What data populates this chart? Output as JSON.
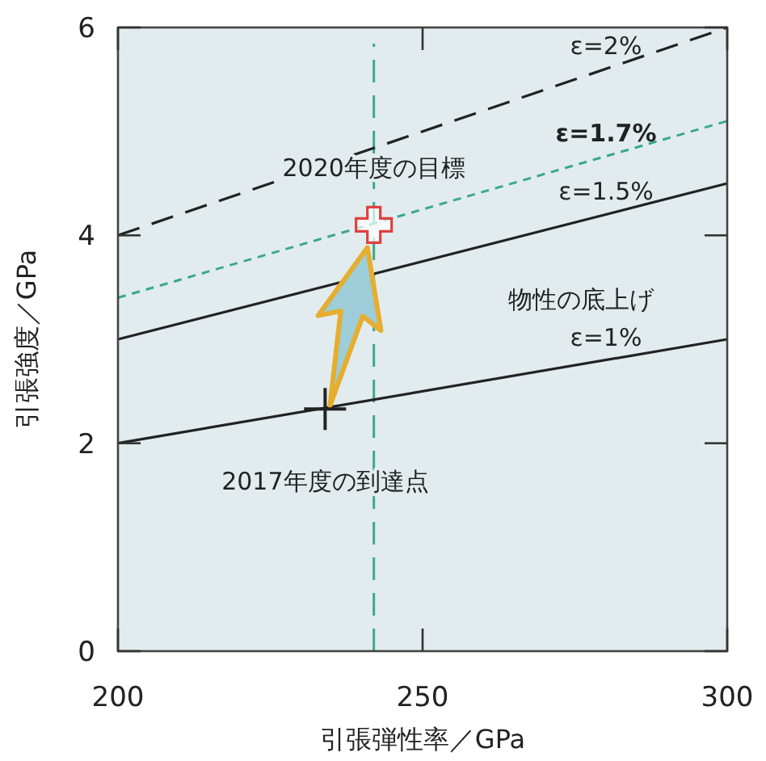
{
  "chart_data": {
    "type": "line",
    "xlabel": "引張弾性率／GPa",
    "ylabel": "引張強度／GPa",
    "xlim": [
      200,
      300
    ],
    "ylim": [
      0,
      6
    ],
    "xticks": [
      200,
      250,
      300
    ],
    "yticks": [
      0,
      2,
      4,
      6
    ],
    "grid": false,
    "series": [
      {
        "name": "ε=2%",
        "color": "#222222",
        "x": [
          200,
          300
        ],
        "values": [
          4,
          6
        ],
        "line_style": "dashed"
      },
      {
        "name": "ε=1.7%",
        "color": "#3aa88e",
        "x": [
          200,
          300
        ],
        "values": [
          3.4,
          5.1
        ],
        "line_style": "dotted"
      },
      {
        "name": "ε=1.5%",
        "color": "#222222",
        "x": [
          200,
          300
        ],
        "values": [
          3,
          4.5
        ],
        "line_style": "solid"
      },
      {
        "name": "ε=1%",
        "color": "#222222",
        "x": [
          200,
          300
        ],
        "values": [
          2,
          3
        ],
        "line_style": "solid"
      },
      {
        "type": "scatter",
        "color": "#222222",
        "x": [
          234
        ],
        "values": [
          2.33
        ],
        "marker": "cross"
      },
      {
        "type": "scatter",
        "color": "#e04040",
        "x": [
          242
        ],
        "values": [
          4.1
        ],
        "marker": "cross"
      }
    ],
    "ref_lines": [
      {
        "axis": "x",
        "value": 242,
        "color": "#3aa88e",
        "line_style": "dashed"
      }
    ],
    "annotations": [
      {
        "text": "2020年度の目標",
        "x": 242,
        "y": 4.1
      },
      {
        "text": "2017年度の到達点",
        "x": 234,
        "y": 2.33
      },
      "物性の底上げ"
    ]
  }
}
